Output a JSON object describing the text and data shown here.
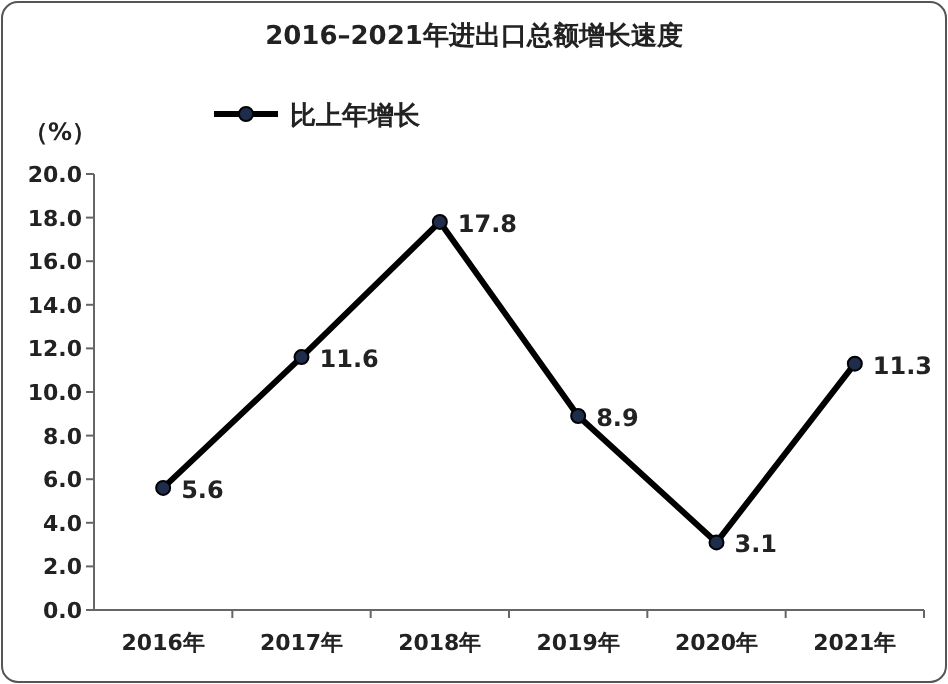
{
  "chart_data": {
    "type": "line",
    "title": "2016–2021年进出口总额增长速度",
    "ylabel": "（%）",
    "categories": [
      "2016年",
      "2017年",
      "2018年",
      "2019年",
      "2020年",
      "2021年"
    ],
    "series": [
      {
        "name": "比上年增长",
        "color": "#000000",
        "values": [
          5.6,
          11.6,
          17.8,
          8.9,
          3.1,
          11.3
        ]
      }
    ],
    "ylim": [
      0,
      20
    ],
    "yticks": [
      {
        "value": 0,
        "label": "0.0"
      },
      {
        "value": 2,
        "label": "2.0"
      },
      {
        "value": 4,
        "label": "4.0"
      },
      {
        "value": 6,
        "label": "6.0"
      },
      {
        "value": 8,
        "label": "8.0"
      },
      {
        "value": 10,
        "label": "10.0"
      },
      {
        "value": 12,
        "label": "12.0"
      },
      {
        "value": 14,
        "label": "14.0"
      },
      {
        "value": 16,
        "label": "16.0"
      },
      {
        "value": 18,
        "label": "18.0"
      },
      {
        "value": 20,
        "label": "20.0"
      }
    ],
    "data_labels": true,
    "marker": "circle",
    "line_style": "solid",
    "legend": "top left",
    "grid": false
  }
}
